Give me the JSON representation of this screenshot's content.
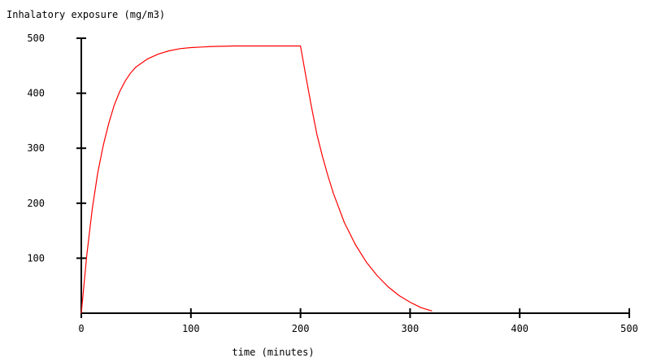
{
  "chart_data": {
    "type": "line",
    "title": "",
    "ylabel": "Inhalatory exposure (mg/m3)",
    "xlabel": "time (minutes)",
    "xlim": [
      0,
      500
    ],
    "ylim": [
      0,
      500
    ],
    "x_ticks": [
      0,
      100,
      200,
      300,
      400,
      500
    ],
    "y_ticks": [
      100,
      200,
      300,
      400,
      500
    ],
    "grid": false,
    "legend": "none",
    "series": [
      {
        "color": "#ff0000",
        "points": [
          [
            0,
            0
          ],
          [
            5,
            105
          ],
          [
            10,
            190
          ],
          [
            15,
            255
          ],
          [
            20,
            305
          ],
          [
            25,
            345
          ],
          [
            30,
            378
          ],
          [
            35,
            403
          ],
          [
            40,
            422
          ],
          [
            45,
            437
          ],
          [
            50,
            448
          ],
          [
            60,
            462
          ],
          [
            70,
            471
          ],
          [
            80,
            477
          ],
          [
            90,
            481
          ],
          [
            100,
            483
          ],
          [
            110,
            484
          ],
          [
            120,
            485
          ],
          [
            140,
            486
          ],
          [
            160,
            486
          ],
          [
            180,
            486
          ],
          [
            200,
            486
          ],
          [
            205,
            430
          ],
          [
            210,
            375
          ],
          [
            215,
            325
          ],
          [
            220,
            285
          ],
          [
            225,
            250
          ],
          [
            230,
            218
          ],
          [
            240,
            165
          ],
          [
            250,
            125
          ],
          [
            260,
            93
          ],
          [
            270,
            68
          ],
          [
            280,
            48
          ],
          [
            290,
            32
          ],
          [
            300,
            20
          ],
          [
            310,
            10
          ],
          [
            320,
            4
          ]
        ]
      }
    ]
  }
}
